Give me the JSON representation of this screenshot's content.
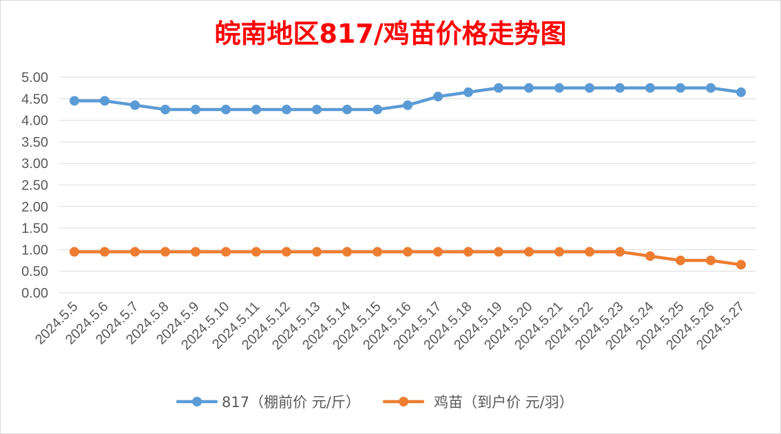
{
  "chart_data": {
    "type": "line",
    "title": "皖南地区817/鸡苗价格走势图",
    "categories": [
      "2024.5.5",
      "2024.5.6",
      "2024.5.7",
      "2024.5.8",
      "2024.5.9",
      "2024.5.10",
      "2024.5.11",
      "2024.5.12",
      "2024.5.13",
      "2024.5.14",
      "2024.5.15",
      "2024.5.16",
      "2024.5.17",
      "2024.5.18",
      "2024.5.19",
      "2024.5.20",
      "2024.5.21",
      "2024.5.22",
      "2024.5.23",
      "2024.5.24",
      "2024.5.25",
      "2024.5.26",
      "2024.5.27"
    ],
    "series": [
      {
        "name": "817（棚前价 元/斤）",
        "color": "#5b9bd5",
        "values": [
          4.45,
          4.45,
          4.35,
          4.25,
          4.25,
          4.25,
          4.25,
          4.25,
          4.25,
          4.25,
          4.25,
          4.35,
          4.55,
          4.65,
          4.75,
          4.75,
          4.75,
          4.75,
          4.75,
          4.75,
          4.75,
          4.75,
          4.65
        ]
      },
      {
        "name": "鸡苗（到户价 元/羽）",
        "color": "#ed7d31",
        "values": [
          0.95,
          0.95,
          0.95,
          0.95,
          0.95,
          0.95,
          0.95,
          0.95,
          0.95,
          0.95,
          0.95,
          0.95,
          0.95,
          0.95,
          0.95,
          0.95,
          0.95,
          0.95,
          0.95,
          0.85,
          0.75,
          0.75,
          0.65
        ]
      }
    ],
    "ylim": [
      0,
      5
    ],
    "yticks": [
      "0.00",
      "0.50",
      "1.00",
      "1.50",
      "2.00",
      "2.50",
      "3.00",
      "3.50",
      "4.00",
      "4.50",
      "5.00"
    ],
    "grid": true,
    "legend_position": "bottom"
  }
}
